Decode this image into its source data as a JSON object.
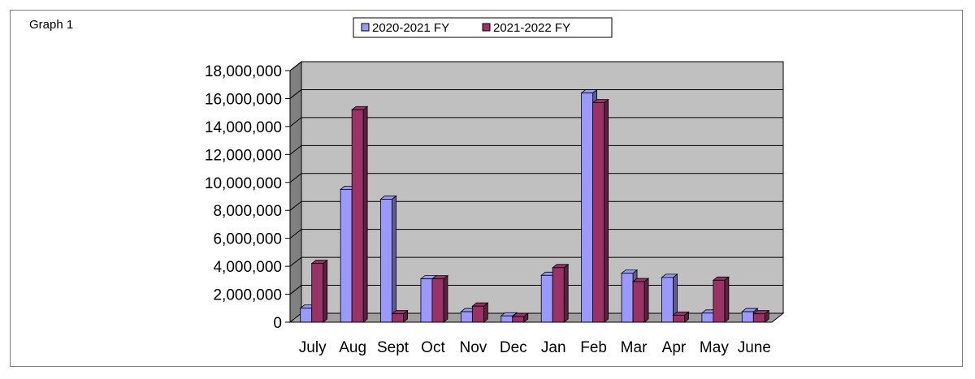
{
  "graph_label": "Graph 1",
  "chart_data": {
    "type": "bar",
    "title": "",
    "xlabel": "",
    "ylabel": "",
    "categories": [
      "July",
      "Aug",
      "Sept",
      "Oct",
      "Nov",
      "Dec",
      "Jan",
      "Feb",
      "Mar",
      "Apr",
      "May",
      "June"
    ],
    "series": [
      {
        "name": "2020-2021 FY",
        "color": "#9999ff",
        "values": [
          1000000,
          9500000,
          8800000,
          3100000,
          750000,
          450000,
          3350000,
          16400000,
          3500000,
          3200000,
          650000,
          750000
        ]
      },
      {
        "name": "2021-2022 FY",
        "color": "#993366",
        "values": [
          4200000,
          15200000,
          600000,
          3100000,
          1150000,
          400000,
          3900000,
          15700000,
          2900000,
          500000,
          3000000,
          600000
        ]
      }
    ],
    "ylim": [
      0,
      18000000
    ],
    "yticks": [
      0,
      2000000,
      4000000,
      6000000,
      8000000,
      10000000,
      12000000,
      14000000,
      16000000,
      18000000
    ],
    "ytick_labels": [
      "0",
      "2,000,000",
      "4,000,000",
      "6,000,000",
      "8,000,000",
      "10,000,000",
      "12,000,000",
      "14,000,000",
      "16,000,000",
      "18,000,000"
    ],
    "grid": true,
    "legend_position": "top-center",
    "style": "3d-clustered",
    "wall_color": "#c0c0c0"
  }
}
